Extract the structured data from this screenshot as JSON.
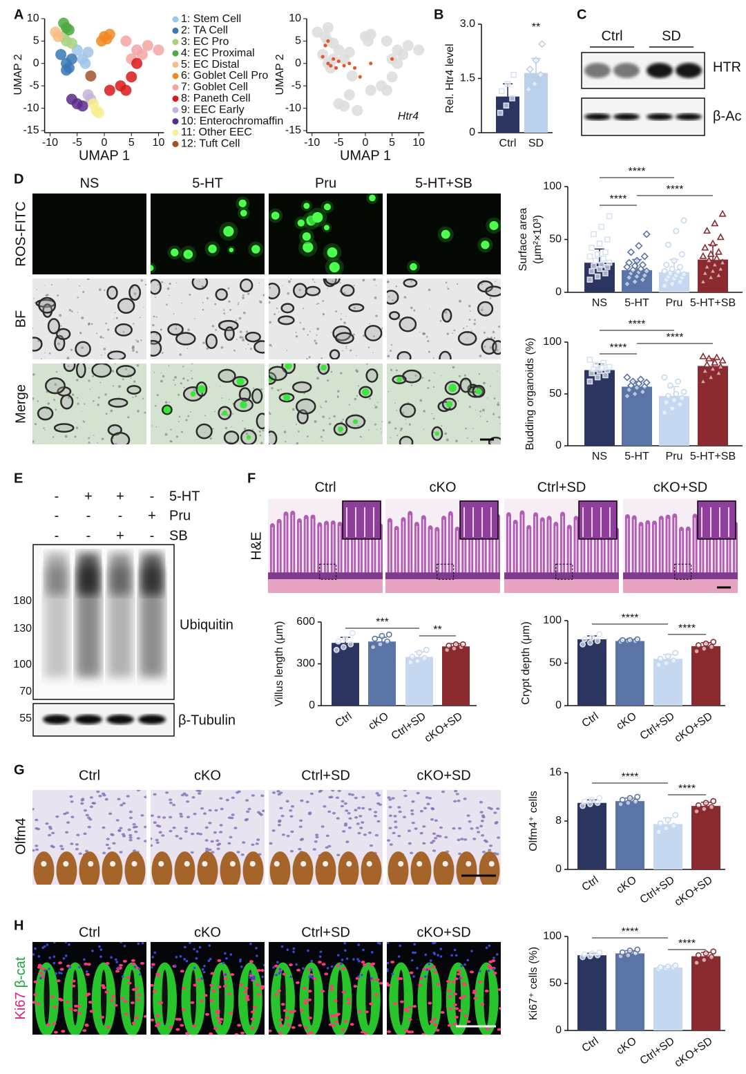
{
  "panels": [
    "A",
    "B",
    "C",
    "D",
    "E",
    "F",
    "G",
    "H"
  ],
  "chart_data": [
    {
      "type": "scatter",
      "xlabel": "UMAP 1",
      "ylabel": "UMAP 2",
      "xlim": [
        -11,
        11
      ],
      "ylim": [
        -15,
        10
      ],
      "xticks": [
        -10,
        -5,
        0,
        5,
        10
      ],
      "yticks": [
        -15,
        -10,
        -5,
        0,
        5,
        10
      ],
      "series": [
        {
          "name": "1: Stem Cell",
          "color": "#9ec5e8",
          "x": [
            -4,
            -3,
            -5,
            -3.5
          ],
          "y": [
            1,
            2.5,
            3,
            0
          ]
        },
        {
          "name": "2: TA Cell",
          "color": "#3a78b5",
          "x": [
            -7,
            -6.5,
            -8,
            -6,
            -7
          ],
          "y": [
            0,
            -1,
            2,
            1,
            -1.5
          ]
        },
        {
          "name": "3: EC Pro",
          "color": "#a8d27f",
          "x": [
            -7,
            -6,
            -7.5
          ],
          "y": [
            5,
            4.5,
            6
          ]
        },
        {
          "name": "4: EC Proximal",
          "color": "#4ea843",
          "x": [
            -7,
            -6.5,
            -7.5
          ],
          "y": [
            8,
            7.5,
            9
          ]
        },
        {
          "name": "5: EC Distal",
          "color": "#f6bd86",
          "x": [
            -9,
            -8.5
          ],
          "y": [
            7,
            6
          ]
        },
        {
          "name": "6: Goblet Cell Pro",
          "color": "#f08a24",
          "x": [
            0,
            -0.5,
            1,
            0.5
          ],
          "y": [
            6,
            5,
            6.5,
            5.5
          ]
        },
        {
          "name": "7: Goblet Cell",
          "color": "#f4a3a3",
          "x": [
            4,
            6,
            8,
            10,
            7,
            5
          ],
          "y": [
            5,
            3,
            4,
            3,
            2,
            1
          ]
        },
        {
          "name": "8: Paneth Cell",
          "color": "#d7191c",
          "x": [
            6,
            5,
            3,
            1,
            4
          ],
          "y": [
            0,
            -3,
            -5,
            -6,
            -6
          ]
        },
        {
          "name": "9: EEC Early",
          "color": "#c5b3d9",
          "x": [
            -3,
            -2.5
          ],
          "y": [
            -7,
            -8
          ]
        },
        {
          "name": "10: Enterochromaffin",
          "color": "#5b2b8a",
          "x": [
            -6,
            -5,
            -4
          ],
          "y": [
            -8,
            -9,
            -9.5
          ]
        },
        {
          "name": "11: Other EEC",
          "color": "#f6ef8f",
          "x": [
            -2,
            -1.5,
            -1
          ],
          "y": [
            -9,
            -10.5,
            -11
          ]
        },
        {
          "name": "12: Tuft Cell",
          "color": "#a0522d",
          "x": [
            -2.5
          ],
          "y": [
            -2.8
          ]
        }
      ]
    },
    {
      "type": "scatter",
      "xlabel": "UMAP 1",
      "ylabel": "UMAP 2",
      "xlim": [
        -11,
        11
      ],
      "ylim": [
        -15,
        10
      ],
      "xticks": [
        -10,
        -5,
        0,
        5,
        10
      ],
      "yticks": [
        -15,
        -10,
        -5,
        0,
        5,
        10
      ],
      "annotation": "Htr4",
      "series": [
        {
          "color": "#dcdcdc",
          "x": [
            -4,
            -3,
            -5,
            -7,
            -6.5,
            -8,
            -6,
            -7,
            -6,
            -7.5,
            -7,
            -9,
            0,
            1,
            0.5,
            4,
            6,
            8,
            10,
            7,
            5,
            6,
            5,
            3,
            1,
            4,
            -3,
            -5,
            -4,
            -1.5,
            -2.5
          ],
          "y": [
            1,
            2.5,
            3,
            0,
            -1,
            2,
            1,
            5,
            4.5,
            6,
            8,
            7,
            6,
            6.5,
            5,
            5,
            3,
            4,
            3,
            2,
            1,
            0,
            -3,
            -5,
            -6,
            -6,
            -7,
            -9,
            -9.5,
            -10.5,
            -2.8
          ]
        },
        {
          "color": "#e4572e",
          "x": [
            -7,
            -6,
            -5,
            -8,
            -6.5,
            -4,
            -3,
            -7,
            -2,
            1,
            5,
            -1,
            -7.5,
            -5.5
          ],
          "y": [
            0,
            1,
            0.5,
            1.5,
            -0.5,
            -0.5,
            0,
            5,
            -1,
            0,
            1,
            -3,
            4,
            -1
          ]
        }
      ]
    },
    {
      "type": "bar",
      "ylabel": "Rel. Htr4 level",
      "categories": [
        "Ctrl",
        "SD"
      ],
      "values": [
        1.0,
        1.65
      ],
      "errors": [
        0.35,
        0.4
      ],
      "points": [
        [
          0.55,
          0.75,
          0.95,
          1.15,
          1.35,
          1.6
        ],
        [
          1.2,
          1.35,
          1.6,
          1.75,
          2.0,
          2.45
        ]
      ],
      "colors": [
        "#2b3560",
        "#b9cfea"
      ],
      "markers": [
        "square",
        "diamond"
      ],
      "ylim": [
        0,
        3
      ],
      "yticks": [
        0,
        1.5,
        {
          "value": 3,
          "label": "3.0"
        }
      ],
      "annotations": [
        {
          "text": "**",
          "between": [
            1,
            1
          ]
        }
      ]
    },
    {
      "type": "bar",
      "ylabel": [
        "Surface area",
        "(μm²×10³)"
      ],
      "categories": [
        "NS",
        "5-HT",
        "Pru",
        "5-HT+SB"
      ],
      "values": [
        28,
        21,
        19,
        31
      ],
      "errors": [
        13,
        10,
        12,
        14
      ],
      "points": [
        [
          12,
          15,
          18,
          20,
          22,
          24,
          25,
          26,
          28,
          30,
          32,
          34,
          36,
          38,
          42,
          46,
          50,
          55,
          62,
          72
        ],
        [
          8,
          10,
          12,
          14,
          15,
          16,
          18,
          19,
          20,
          21,
          22,
          24,
          25,
          26,
          28,
          30,
          34,
          38,
          44,
          55
        ],
        [
          6,
          8,
          10,
          12,
          13,
          14,
          15,
          16,
          17,
          18,
          19,
          20,
          22,
          24,
          26,
          30,
          36,
          45,
          58,
          68
        ],
        [
          10,
          14,
          16,
          18,
          20,
          22,
          24,
          26,
          28,
          30,
          32,
          34,
          36,
          38,
          42,
          46,
          52,
          58,
          65,
          74
        ]
      ],
      "colors": [
        "#2b3560",
        "#5a74a8",
        "#c6d8ef",
        "#8b2a2f"
      ],
      "markers": [
        "square",
        "diamond",
        "circle",
        "triangle"
      ],
      "ylim": [
        0,
        100
      ],
      "yticks": [
        0,
        50,
        100
      ],
      "annotations": [
        {
          "text": "****",
          "between": [
            0,
            2
          ]
        },
        {
          "text": "****",
          "between": [
            0,
            1
          ]
        },
        {
          "text": "****",
          "between": [
            1,
            3
          ]
        }
      ]
    },
    {
      "type": "bar",
      "ylabel": "Budding organoids (%)",
      "categories": [
        "NS",
        "5-HT",
        "Pru",
        "5-HT+SB"
      ],
      "values": [
        73,
        57,
        48,
        77
      ],
      "errors": [
        6,
        5,
        9,
        7
      ],
      "points": [
        [
          62,
          66,
          68,
          70,
          72,
          73,
          74,
          75,
          76,
          78,
          80,
          83
        ],
        [
          48,
          50,
          52,
          54,
          56,
          57,
          58,
          60,
          61,
          62,
          64,
          66
        ],
        [
          32,
          36,
          40,
          42,
          44,
          46,
          48,
          50,
          52,
          58,
          62,
          66
        ],
        [
          62,
          66,
          70,
          72,
          74,
          76,
          78,
          80,
          82,
          84,
          85,
          86
        ]
      ],
      "colors": [
        "#2b3560",
        "#5a74a8",
        "#c6d8ef",
        "#8b2a2f"
      ],
      "markers": [
        "square",
        "diamond",
        "circle",
        "triangle"
      ],
      "ylim": [
        0,
        100
      ],
      "yticks": [
        0,
        50,
        100
      ],
      "annotations": [
        {
          "text": "****",
          "between": [
            0,
            2
          ]
        },
        {
          "text": "****",
          "between": [
            0,
            1
          ]
        },
        {
          "text": "****",
          "between": [
            1,
            3
          ]
        }
      ]
    },
    {
      "type": "bar",
      "ylabel": "Villus length (μm)",
      "categories": [
        "Ctrl",
        "cKO",
        "Ctrl+SD",
        "cKO+SD"
      ],
      "values": [
        450,
        460,
        350,
        425
      ],
      "errors": [
        40,
        30,
        35,
        20
      ],
      "points": [
        [
          400,
          420,
          440,
          460,
          480,
          520
        ],
        [
          420,
          440,
          460,
          480,
          500,
          510
        ],
        [
          310,
          320,
          340,
          350,
          380,
          400
        ],
        [
          400,
          410,
          420,
          430,
          440,
          440
        ]
      ],
      "colors": [
        "#2b3560",
        "#5a74a8",
        "#c6d8ef",
        "#8b2a2f"
      ],
      "markers": [
        "circle",
        "circle",
        "circle",
        "circle"
      ],
      "rotate_labels": true,
      "ylim": [
        0,
        600
      ],
      "yticks": [
        0,
        300,
        600
      ],
      "annotations": [
        {
          "text": "***",
          "between": [
            0,
            2
          ]
        },
        {
          "text": "**",
          "between": [
            2,
            3
          ]
        }
      ]
    },
    {
      "type": "bar",
      "ylabel": "Crypt depth (μm)",
      "categories": [
        "Ctrl",
        "cKO",
        "Ctrl+SD",
        "cKO+SD"
      ],
      "values": [
        78,
        76,
        55,
        70
      ],
      "errors": [
        4,
        1.5,
        5,
        4
      ],
      "points": [
        [
          72,
          74,
          76,
          78,
          80,
          84
        ],
        [
          75,
          76,
          76,
          77,
          77,
          78
        ],
        [
          48,
          50,
          53,
          55,
          58,
          62
        ],
        [
          64,
          67,
          69,
          71,
          73,
          75
        ]
      ],
      "colors": [
        "#2b3560",
        "#5a74a8",
        "#c6d8ef",
        "#8b2a2f"
      ],
      "markers": [
        "circle",
        "circle",
        "circle",
        "circle"
      ],
      "rotate_labels": true,
      "ylim": [
        0,
        100
      ],
      "yticks": [
        0,
        50,
        100
      ],
      "annotations": [
        {
          "text": "****",
          "between": [
            0,
            2
          ]
        },
        {
          "text": "****",
          "between": [
            2,
            3
          ]
        }
      ]
    },
    {
      "type": "bar",
      "ylabel": "Olfm4⁺ cells",
      "categories": [
        "Ctrl",
        "cKO",
        "Ctrl+SD",
        "cKO+SD"
      ],
      "values": [
        11,
        11.3,
        7.5,
        10.5
      ],
      "errors": [
        0.5,
        0.5,
        1,
        0.6
      ],
      "points": [
        [
          10.5,
          10.8,
          11,
          11.2,
          11.5,
          11.8
        ],
        [
          10.8,
          11,
          11.2,
          11.5,
          11.8,
          12
        ],
        [
          6.2,
          6.8,
          7.2,
          7.6,
          8.2,
          9
        ],
        [
          9.6,
          10,
          10.3,
          10.6,
          11,
          11.3
        ]
      ],
      "colors": [
        "#2b3560",
        "#5a74a8",
        "#c6d8ef",
        "#8b2a2f"
      ],
      "markers": [
        "circle",
        "circle",
        "circle",
        "circle"
      ],
      "rotate_labels": true,
      "ylim": [
        0,
        16
      ],
      "yticks": [
        0,
        8,
        16
      ],
      "annotations": [
        {
          "text": "****",
          "between": [
            0,
            2
          ]
        },
        {
          "text": "****",
          "between": [
            2,
            3
          ]
        }
      ]
    },
    {
      "type": "bar",
      "ylabel": "Ki67⁺ cells (%)",
      "categories": [
        "Ctrl",
        "cKO",
        "Ctrl+SD",
        "cKO+SD"
      ],
      "values": [
        80,
        82,
        67,
        79
      ],
      "errors": [
        2,
        3,
        1.5,
        4
      ],
      "points": [
        [
          78,
          79,
          80,
          81,
          82,
          83
        ],
        [
          79,
          80,
          82,
          83,
          85,
          86
        ],
        [
          65,
          66,
          67,
          67,
          68,
          69
        ],
        [
          72,
          75,
          78,
          80,
          82,
          84
        ]
      ],
      "colors": [
        "#2b3560",
        "#5a74a8",
        "#c6d8ef",
        "#8b2a2f"
      ],
      "markers": [
        "circle",
        "circle",
        "circle",
        "circle"
      ],
      "rotate_labels": true,
      "ylim": [
        0,
        100
      ],
      "yticks": [
        0,
        50,
        100
      ],
      "annotations": [
        {
          "text": "****",
          "between": [
            0,
            2
          ]
        },
        {
          "text": "****",
          "between": [
            2,
            3
          ]
        }
      ]
    }
  ],
  "blot_c": {
    "groups": [
      "Ctrl",
      "SD"
    ],
    "bands": [
      "HTR",
      "β-Ac"
    ]
  },
  "organoids_d": {
    "columns": [
      "NS",
      "5-HT",
      "Pru",
      "5-HT+SB"
    ],
    "rows": [
      "ROS-FITC",
      "BF",
      "Merge"
    ]
  },
  "blot_e": {
    "treatments": [
      {
        "name": "5-HT",
        "signs": [
          "-",
          "+",
          "+",
          "-"
        ]
      },
      {
        "name": "Pru",
        "signs": [
          "-",
          "-",
          "-",
          "+"
        ]
      },
      {
        "name": "SB",
        "signs": [
          "-",
          "-",
          "+",
          "-"
        ]
      }
    ],
    "markers": [
      180,
      130,
      100,
      70,
      55
    ],
    "bands": [
      "Ubiquitin",
      "β-Tubulin"
    ]
  },
  "histology_f": {
    "columns": [
      "Ctrl",
      "cKO",
      "Ctrl+SD",
      "cKO+SD"
    ],
    "row": "H&E"
  },
  "ihc_g": {
    "columns": [
      "Ctrl",
      "cKO",
      "Ctrl+SD",
      "cKO+SD"
    ],
    "row": "Olfm4"
  },
  "if_h": {
    "columns": [
      "Ctrl",
      "cKO",
      "Ctrl+SD",
      "cKO+SD"
    ],
    "row_parts": [
      "Ki67",
      "β-cat"
    ]
  }
}
